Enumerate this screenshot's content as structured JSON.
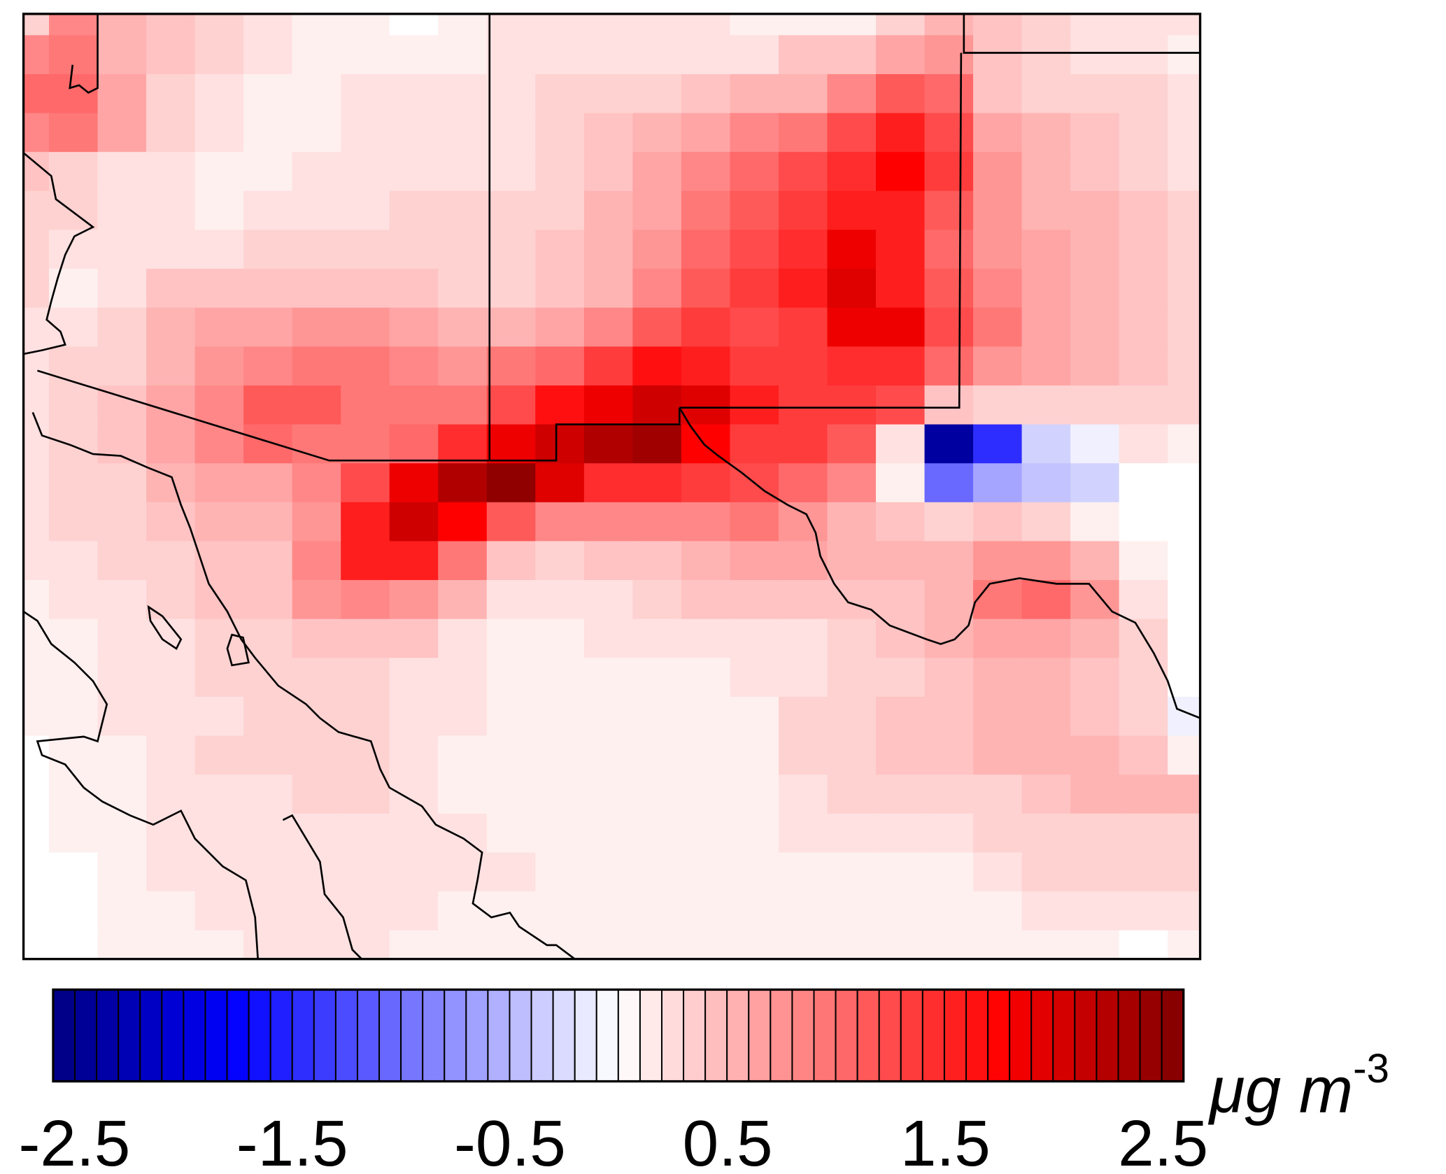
{
  "chart_data": {
    "type": "heatmap",
    "title": "",
    "colorbar": {
      "ticks": [
        "-2.5",
        "-1.5",
        "-0.5",
        "0.5",
        "1.5",
        "2.5"
      ],
      "range": [
        -2.5,
        2.5
      ],
      "unit_main": "μg m",
      "unit_exp": "-3",
      "bins": 52
    },
    "colors": {
      "neg_max": "#000080",
      "neg": "#0000ff",
      "zero": "#ffffff",
      "pos": "#ff0000",
      "pos_max": "#800000"
    },
    "grid_rows": [
      [
        0.3,
        0.8,
        0.5,
        0.4,
        0.3,
        0.2,
        0.1,
        0.1,
        0,
        0.1,
        0.2,
        0.2,
        0.2,
        0.2,
        0.2,
        0.1,
        0.1,
        0.1,
        0.3,
        0.5,
        0.4,
        0.3,
        0.2,
        0.2,
        0.2
      ],
      [
        0.8,
        0.9,
        0.5,
        0.4,
        0.3,
        0.2,
        0.1,
        0.1,
        0.1,
        0.1,
        0.2,
        0.2,
        0.2,
        0.2,
        0.2,
        0.2,
        0.4,
        0.4,
        0.6,
        0.7,
        0.4,
        0.3,
        0.2,
        0.2,
        0.1
      ],
      [
        1.0,
        1.0,
        0.6,
        0.3,
        0.2,
        0.1,
        0.1,
        0.2,
        0.2,
        0.2,
        0.2,
        0.3,
        0.3,
        0.3,
        0.4,
        0.5,
        0.5,
        0.8,
        1.1,
        1.0,
        0.4,
        0.3,
        0.3,
        0.3,
        0.2
      ],
      [
        0.8,
        0.9,
        0.6,
        0.3,
        0.2,
        0.1,
        0.1,
        0.2,
        0.2,
        0.2,
        0.2,
        0.3,
        0.4,
        0.5,
        0.6,
        0.8,
        0.9,
        1.2,
        1.5,
        1.2,
        0.6,
        0.5,
        0.4,
        0.3,
        0.2
      ],
      [
        0.4,
        0.3,
        0.2,
        0.2,
        0.1,
        0.1,
        0.2,
        0.2,
        0.2,
        0.2,
        0.2,
        0.3,
        0.4,
        0.6,
        0.8,
        1.0,
        1.2,
        1.4,
        1.7,
        1.3,
        0.7,
        0.5,
        0.4,
        0.3,
        0.2
      ],
      [
        0.3,
        0.3,
        0.2,
        0.2,
        0.1,
        0.2,
        0.2,
        0.2,
        0.3,
        0.3,
        0.3,
        0.3,
        0.5,
        0.6,
        0.9,
        1.1,
        1.3,
        1.5,
        1.5,
        1.1,
        0.7,
        0.5,
        0.5,
        0.4,
        0.3
      ],
      [
        0.3,
        0.2,
        0.2,
        0.2,
        0.2,
        0.3,
        0.3,
        0.3,
        0.3,
        0.3,
        0.3,
        0.4,
        0.5,
        0.7,
        1.0,
        1.2,
        1.4,
        1.8,
        1.5,
        1.0,
        0.7,
        0.6,
        0.5,
        0.4,
        0.3
      ],
      [
        0.3,
        0.1,
        0.2,
        0.4,
        0.4,
        0.4,
        0.4,
        0.4,
        0.4,
        0.3,
        0.3,
        0.4,
        0.5,
        0.8,
        1.1,
        1.3,
        1.5,
        1.9,
        1.5,
        1.1,
        0.8,
        0.6,
        0.5,
        0.4,
        0.3
      ],
      [
        0.2,
        0.2,
        0.3,
        0.5,
        0.6,
        0.6,
        0.7,
        0.7,
        0.6,
        0.5,
        0.5,
        0.6,
        0.8,
        1.1,
        1.3,
        1.2,
        1.3,
        1.8,
        1.8,
        1.2,
        0.9,
        0.6,
        0.5,
        0.4,
        0.3
      ],
      [
        0.2,
        0.3,
        0.3,
        0.5,
        0.7,
        0.8,
        0.9,
        0.9,
        0.8,
        0.7,
        0.9,
        1.0,
        1.3,
        1.6,
        1.5,
        1.3,
        1.3,
        1.4,
        1.4,
        1.0,
        0.7,
        0.6,
        0.5,
        0.4,
        0.3
      ],
      [
        0.2,
        0.3,
        0.4,
        0.6,
        0.8,
        1.1,
        1.1,
        0.9,
        0.9,
        0.9,
        1.2,
        1.6,
        1.8,
        2.0,
        1.9,
        1.5,
        1.3,
        1.3,
        1.2,
        0.4,
        0.3,
        0.3,
        0.3,
        0.3,
        0.3
      ],
      [
        0.2,
        0.3,
        0.4,
        0.6,
        0.8,
        1.0,
        0.9,
        0.9,
        1.0,
        1.4,
        1.8,
        2.0,
        2.2,
        2.3,
        1.7,
        1.3,
        1.3,
        1.1,
        0.2,
        -2.3,
        -1.4,
        -0.3,
        -0.1,
        0.2,
        0.1
      ],
      [
        0.2,
        0.3,
        0.3,
        0.5,
        0.6,
        0.6,
        0.8,
        1.2,
        1.8,
        2.2,
        2.4,
        1.9,
        1.4,
        1.4,
        1.3,
        1.2,
        1.0,
        0.8,
        0.1,
        -1.0,
        -0.6,
        -0.4,
        -0.3,
        0,
        0
      ],
      [
        0.2,
        0.3,
        0.3,
        0.4,
        0.5,
        0.5,
        0.7,
        1.5,
        2.0,
        1.7,
        1.1,
        0.8,
        0.8,
        0.8,
        0.8,
        0.9,
        0.7,
        0.5,
        0.4,
        0.3,
        0.4,
        0.3,
        0.1,
        0,
        0
      ],
      [
        0.2,
        0.2,
        0.3,
        0.3,
        0.4,
        0.4,
        0.8,
        1.5,
        1.5,
        0.9,
        0.4,
        0.3,
        0.4,
        0.4,
        0.5,
        0.6,
        0.6,
        0.5,
        0.5,
        0.5,
        0.7,
        0.7,
        0.5,
        0.1,
        0
      ],
      [
        0.1,
        0.2,
        0.2,
        0.3,
        0.4,
        0.4,
        0.7,
        0.8,
        0.7,
        0.5,
        0.2,
        0.2,
        0.2,
        0.3,
        0.4,
        0.4,
        0.4,
        0.4,
        0.4,
        0.5,
        0.9,
        1.0,
        0.7,
        0.2,
        0
      ],
      [
        0.1,
        0.1,
        0.2,
        0.2,
        0.3,
        0.3,
        0.4,
        0.4,
        0.4,
        0.2,
        0.1,
        0.1,
        0.2,
        0.2,
        0.2,
        0.2,
        0.2,
        0.3,
        0.4,
        0.5,
        0.6,
        0.6,
        0.5,
        0.3,
        0
      ],
      [
        0.1,
        0.1,
        0.2,
        0.2,
        0.3,
        0.3,
        0.3,
        0.3,
        0.2,
        0.2,
        0.1,
        0.1,
        0.1,
        0.1,
        0.1,
        0.2,
        0.2,
        0.3,
        0.3,
        0.4,
        0.5,
        0.5,
        0.4,
        0.3,
        0
      ],
      [
        0.1,
        0.1,
        0.2,
        0.2,
        0.2,
        0.3,
        0.3,
        0.3,
        0.2,
        0.2,
        0.1,
        0.1,
        0.1,
        0.1,
        0.1,
        0.1,
        0.3,
        0.3,
        0.4,
        0.4,
        0.5,
        0.5,
        0.4,
        0.3,
        -0.1
      ],
      [
        0,
        0.1,
        0.1,
        0.2,
        0.3,
        0.3,
        0.3,
        0.3,
        0.2,
        0.1,
        0.1,
        0.1,
        0.1,
        0.1,
        0.1,
        0.1,
        0.3,
        0.3,
        0.4,
        0.4,
        0.5,
        0.5,
        0.5,
        0.4,
        0.1
      ],
      [
        0,
        0.1,
        0.1,
        0.2,
        0.2,
        0.2,
        0.3,
        0.3,
        0.2,
        0.1,
        0.1,
        0.1,
        0.1,
        0.1,
        0.1,
        0.1,
        0.2,
        0.3,
        0.3,
        0.3,
        0.3,
        0.4,
        0.5,
        0.5,
        0.5
      ],
      [
        0,
        0.1,
        0.1,
        0.2,
        0.2,
        0.2,
        0.2,
        0.2,
        0.2,
        0.2,
        0.1,
        0.1,
        0.1,
        0.1,
        0.1,
        0.1,
        0.2,
        0.2,
        0.2,
        0.2,
        0.3,
        0.3,
        0.3,
        0.3,
        0.3
      ],
      [
        0,
        0,
        0.1,
        0.2,
        0.2,
        0.2,
        0.2,
        0.2,
        0.2,
        0.2,
        0.2,
        0.1,
        0.1,
        0.1,
        0.1,
        0.1,
        0.1,
        0.1,
        0.1,
        0.1,
        0.2,
        0.3,
        0.3,
        0.3,
        0.3
      ],
      [
        0,
        0,
        0.1,
        0.1,
        0.2,
        0.2,
        0.2,
        0.2,
        0.2,
        0.1,
        0.1,
        0.1,
        0.1,
        0.1,
        0.1,
        0.1,
        0.1,
        0.1,
        0.1,
        0.1,
        0.1,
        0.2,
        0.2,
        0.2,
        0.2
      ],
      [
        0,
        0,
        0.1,
        0.1,
        0.1,
        0.2,
        0.2,
        0.2,
        0.1,
        0.1,
        0.1,
        0.1,
        0.1,
        0.1,
        0.1,
        0.1,
        0.1,
        0.1,
        0.1,
        0.1,
        0.1,
        0.1,
        0.1,
        0,
        0.1
      ]
    ]
  }
}
